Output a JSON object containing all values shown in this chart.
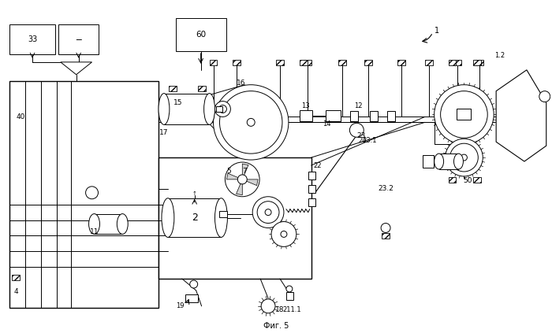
{
  "title": "Фиг. 5",
  "bg_color": "#ffffff"
}
